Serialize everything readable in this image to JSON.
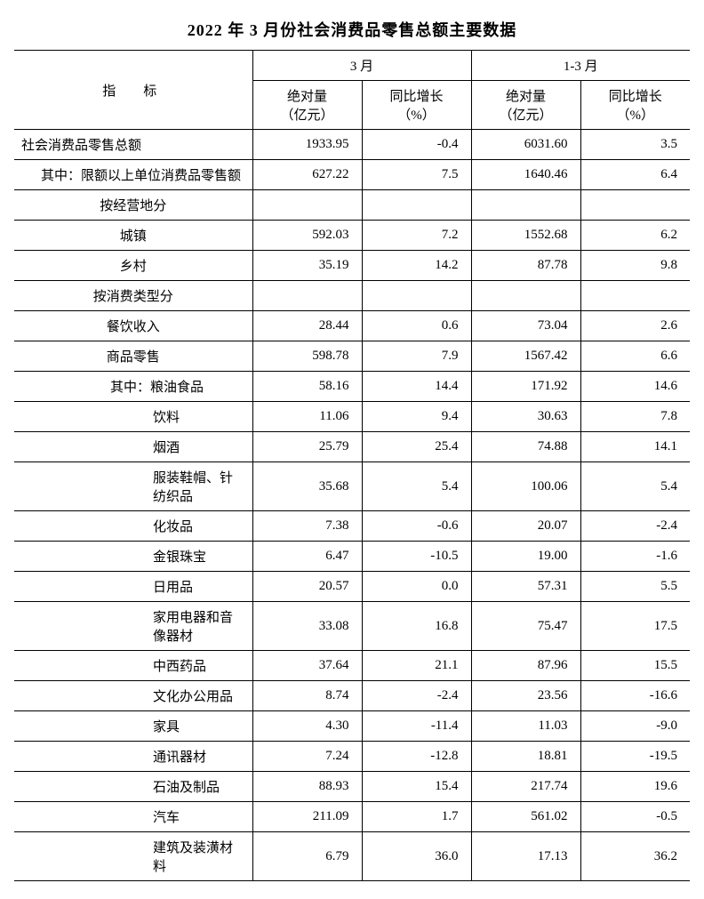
{
  "title": "2022 年 3 月份社会消费品零售总额主要数据",
  "headers": {
    "indicator": "指　标",
    "period1": "3 月",
    "period2": "1-3 月",
    "abs_label": "绝对量",
    "abs_unit": "（亿元）",
    "yoy_label": "同比增长",
    "yoy_unit": "（%）"
  },
  "rows": [
    {
      "label": "社会消费品零售总额",
      "indent": "",
      "m_abs": "1933.95",
      "m_yoy": "-0.4",
      "c_abs": "6031.60",
      "c_yoy": "3.5"
    },
    {
      "label": "其中：限额以上单位消费品零售额",
      "indent": "ind1",
      "m_abs": "627.22",
      "m_yoy": "7.5",
      "c_abs": "1640.46",
      "c_yoy": "6.4"
    },
    {
      "label": "按经营地分",
      "indent": "ind2c",
      "section": true
    },
    {
      "label": "城镇",
      "indent": "ind2c",
      "m_abs": "592.03",
      "m_yoy": "7.2",
      "c_abs": "1552.68",
      "c_yoy": "6.2"
    },
    {
      "label": "乡村",
      "indent": "ind2c",
      "m_abs": "35.19",
      "m_yoy": "14.2",
      "c_abs": "87.78",
      "c_yoy": "9.8"
    },
    {
      "label": "按消费类型分",
      "indent": "ind2c",
      "section": true
    },
    {
      "label": "餐饮收入",
      "indent": "ind2c",
      "m_abs": "28.44",
      "m_yoy": "0.6",
      "c_abs": "73.04",
      "c_yoy": "2.6"
    },
    {
      "label": "商品零售",
      "indent": "ind2c",
      "m_abs": "598.78",
      "m_yoy": "7.9",
      "c_abs": "1567.42",
      "c_yoy": "6.6"
    },
    {
      "label": "其中：粮油食品",
      "indent": "ind3",
      "m_abs": "58.16",
      "m_yoy": "14.4",
      "c_abs": "171.92",
      "c_yoy": "14.6"
    },
    {
      "label": "饮料",
      "indent": "ind4",
      "m_abs": "11.06",
      "m_yoy": "9.4",
      "c_abs": "30.63",
      "c_yoy": "7.8"
    },
    {
      "label": "烟酒",
      "indent": "ind4",
      "m_abs": "25.79",
      "m_yoy": "25.4",
      "c_abs": "74.88",
      "c_yoy": "14.1"
    },
    {
      "label": "服装鞋帽、针纺织品",
      "indent": "ind4",
      "m_abs": "35.68",
      "m_yoy": "5.4",
      "c_abs": "100.06",
      "c_yoy": "5.4"
    },
    {
      "label": "化妆品",
      "indent": "ind4",
      "m_abs": "7.38",
      "m_yoy": "-0.6",
      "c_abs": "20.07",
      "c_yoy": "-2.4"
    },
    {
      "label": "金银珠宝",
      "indent": "ind4",
      "m_abs": "6.47",
      "m_yoy": "-10.5",
      "c_abs": "19.00",
      "c_yoy": "-1.6"
    },
    {
      "label": "日用品",
      "indent": "ind4",
      "m_abs": "20.57",
      "m_yoy": "0.0",
      "c_abs": "57.31",
      "c_yoy": "5.5"
    },
    {
      "label": "家用电器和音像器材",
      "indent": "ind4",
      "m_abs": "33.08",
      "m_yoy": "16.8",
      "c_abs": "75.47",
      "c_yoy": "17.5"
    },
    {
      "label": "中西药品",
      "indent": "ind4",
      "m_abs": "37.64",
      "m_yoy": "21.1",
      "c_abs": "87.96",
      "c_yoy": "15.5"
    },
    {
      "label": "文化办公用品",
      "indent": "ind4",
      "m_abs": "8.74",
      "m_yoy": "-2.4",
      "c_abs": "23.56",
      "c_yoy": "-16.6"
    },
    {
      "label": "家具",
      "indent": "ind4",
      "m_abs": "4.30",
      "m_yoy": "-11.4",
      "c_abs": "11.03",
      "c_yoy": "-9.0"
    },
    {
      "label": "通讯器材",
      "indent": "ind4",
      "m_abs": "7.24",
      "m_yoy": "-12.8",
      "c_abs": "18.81",
      "c_yoy": "-19.5"
    },
    {
      "label": "石油及制品",
      "indent": "ind4",
      "m_abs": "88.93",
      "m_yoy": "15.4",
      "c_abs": "217.74",
      "c_yoy": "19.6"
    },
    {
      "label": "汽车",
      "indent": "ind4",
      "m_abs": "211.09",
      "m_yoy": "1.7",
      "c_abs": "561.02",
      "c_yoy": "-0.5"
    },
    {
      "label": "建筑及装潢材料",
      "indent": "ind4",
      "m_abs": "6.79",
      "m_yoy": "36.0",
      "c_abs": "17.13",
      "c_yoy": "36.2"
    }
  ]
}
